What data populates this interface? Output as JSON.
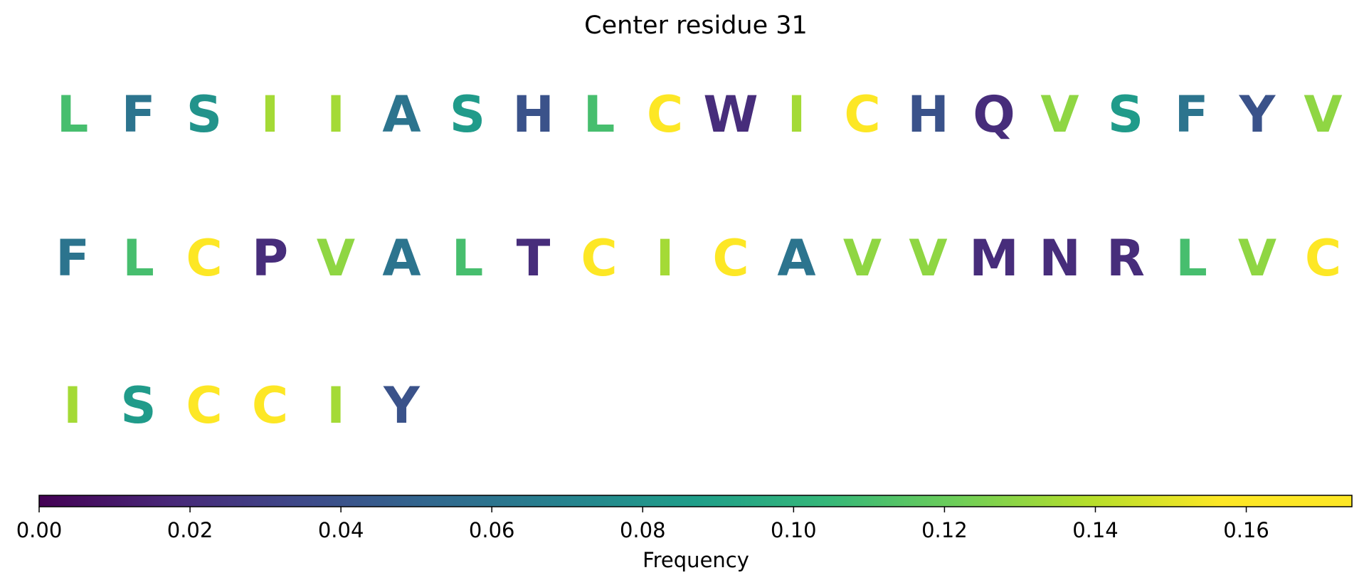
{
  "chart_data": {
    "type": "heatmap",
    "title": "Center residue 31",
    "residues": [
      {
        "letter": "L",
        "value": 0.11
      },
      {
        "letter": "F",
        "value": 0.06
      },
      {
        "letter": "S",
        "value": 0.08
      },
      {
        "letter": "I",
        "value": 0.135
      },
      {
        "letter": "I",
        "value": 0.135
      },
      {
        "letter": "A",
        "value": 0.06
      },
      {
        "letter": "S",
        "value": 0.085
      },
      {
        "letter": "H",
        "value": 0.04
      },
      {
        "letter": "L",
        "value": 0.11
      },
      {
        "letter": "C",
        "value": 0.17
      },
      {
        "letter": "W",
        "value": 0.02
      },
      {
        "letter": "I",
        "value": 0.135
      },
      {
        "letter": "C",
        "value": 0.17
      },
      {
        "letter": "H",
        "value": 0.04
      },
      {
        "letter": "Q",
        "value": 0.02
      },
      {
        "letter": "V",
        "value": 0.13
      },
      {
        "letter": "S",
        "value": 0.085
      },
      {
        "letter": "F",
        "value": 0.06
      },
      {
        "letter": "Y",
        "value": 0.04
      },
      {
        "letter": "V",
        "value": 0.13
      },
      {
        "letter": "F",
        "value": 0.06
      },
      {
        "letter": "L",
        "value": 0.11
      },
      {
        "letter": "C",
        "value": 0.17
      },
      {
        "letter": "P",
        "value": 0.02
      },
      {
        "letter": "V",
        "value": 0.13
      },
      {
        "letter": "A",
        "value": 0.06
      },
      {
        "letter": "L",
        "value": 0.11
      },
      {
        "letter": "T",
        "value": 0.02
      },
      {
        "letter": "C",
        "value": 0.17
      },
      {
        "letter": "I",
        "value": 0.135
      },
      {
        "letter": "C",
        "value": 0.17
      },
      {
        "letter": "A",
        "value": 0.06
      },
      {
        "letter": "V",
        "value": 0.13
      },
      {
        "letter": "V",
        "value": 0.13
      },
      {
        "letter": "M",
        "value": 0.02
      },
      {
        "letter": "N",
        "value": 0.02
      },
      {
        "letter": "R",
        "value": 0.02
      },
      {
        "letter": "L",
        "value": 0.11
      },
      {
        "letter": "V",
        "value": 0.13
      },
      {
        "letter": "C",
        "value": 0.17
      },
      {
        "letter": "I",
        "value": 0.135
      },
      {
        "letter": "S",
        "value": 0.085
      },
      {
        "letter": "C",
        "value": 0.17
      },
      {
        "letter": "C",
        "value": 0.17
      },
      {
        "letter": "I",
        "value": 0.135
      },
      {
        "letter": "Y",
        "value": 0.04
      }
    ],
    "letters_per_row": 20,
    "colormap": "viridis",
    "colorbar": {
      "label": "Frequency",
      "vmin": 0.0,
      "vmax": 0.174,
      "ticks": [
        0.0,
        0.02,
        0.04,
        0.06,
        0.08,
        0.1,
        0.12,
        0.14,
        0.16
      ],
      "tick_labels": [
        "0.00",
        "0.02",
        "0.04",
        "0.06",
        "0.08",
        "0.10",
        "0.12",
        "0.14",
        "0.16"
      ]
    }
  }
}
